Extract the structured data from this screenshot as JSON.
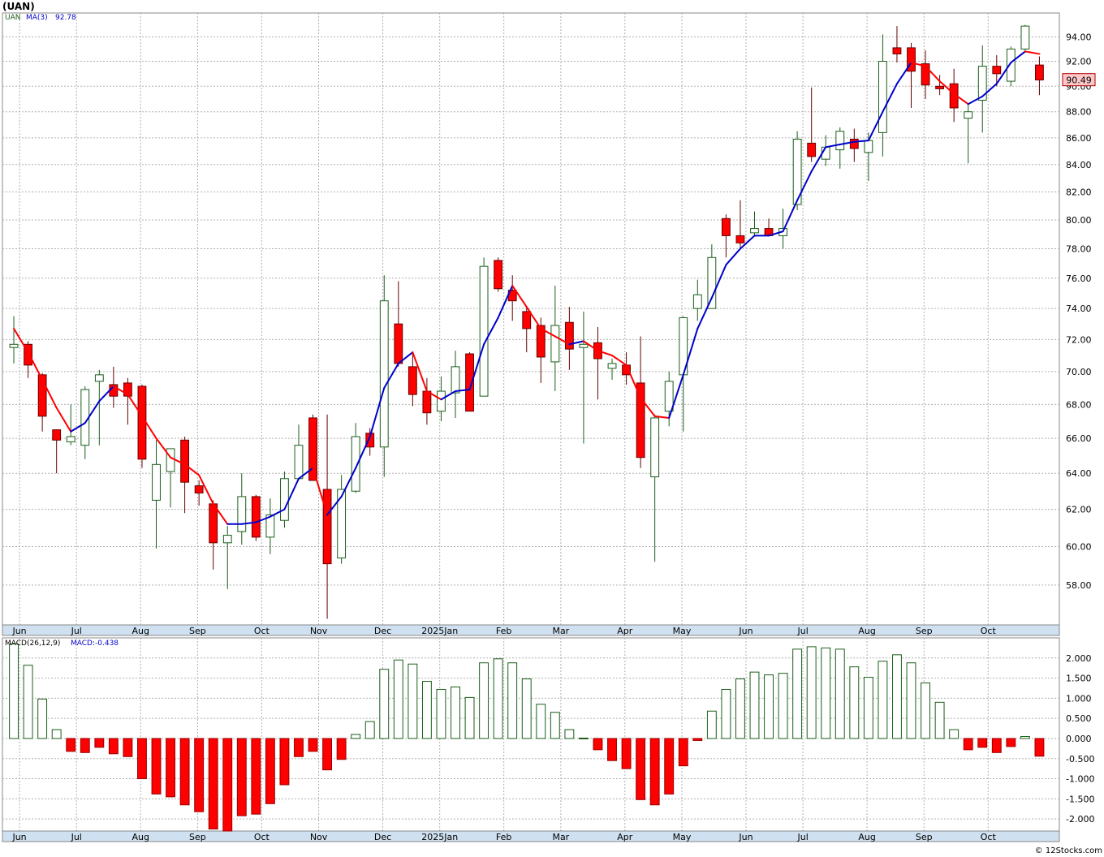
{
  "title": "(UAN)",
  "credit": "© 12Stocks.com",
  "colors": {
    "up": "#1a5e1a",
    "down": "#ff0000",
    "ma_up": "#0000cc",
    "ma_down": "#ff0000",
    "grid": "#b0b0b0",
    "axis_band": "#cfe0f0",
    "last_price_bg": "#ffc8c8"
  },
  "months": [
    "Jun",
    "Jul",
    "Aug",
    "Sep",
    "Oct",
    "Nov",
    "Dec",
    "2025Jan",
    "Feb",
    "Mar",
    "Apr",
    "May",
    "Jun",
    "Jul",
    "Aug",
    "Sep",
    "Oct"
  ],
  "chart_data": [
    {
      "type": "candlestick",
      "legend": {
        "symbol": "UAN",
        "ma_label": "MA(3)",
        "ma_value": "92.78"
      },
      "last_price": "90.49",
      "ylim": [
        56,
        96
      ],
      "y_scale": "log",
      "y_ticks": [
        "58.00",
        "60.00",
        "62.00",
        "64.00",
        "66.00",
        "68.00",
        "70.00",
        "72.00",
        "74.00",
        "76.00",
        "78.00",
        "80.00",
        "82.00",
        "84.00",
        "86.00",
        "88.00",
        "90.00",
        "92.00",
        "94.00"
      ],
      "candles": [
        {
          "o": 71.5,
          "h": 73.5,
          "l": 70.5,
          "c": 71.7
        },
        {
          "o": 71.7,
          "h": 71.9,
          "l": 69.6,
          "c": 70.4
        },
        {
          "o": 69.8,
          "h": 69.9,
          "l": 66.4,
          "c": 67.3
        },
        {
          "o": 66.5,
          "h": 66.5,
          "l": 64.0,
          "c": 65.9
        },
        {
          "o": 65.8,
          "h": 68.0,
          "l": 65.6,
          "c": 66.1
        },
        {
          "o": 65.6,
          "h": 69.1,
          "l": 64.8,
          "c": 68.9
        },
        {
          "o": 69.4,
          "h": 70.1,
          "l": 65.6,
          "c": 69.8
        },
        {
          "o": 69.2,
          "h": 70.3,
          "l": 67.8,
          "c": 68.5
        },
        {
          "o": 69.3,
          "h": 69.6,
          "l": 66.8,
          "c": 68.5
        },
        {
          "o": 69.1,
          "h": 69.2,
          "l": 64.3,
          "c": 64.8
        },
        {
          "o": 62.5,
          "h": 65.9,
          "l": 59.9,
          "c": 64.5
        },
        {
          "o": 64.1,
          "h": 65.4,
          "l": 62.1,
          "c": 65.4
        },
        {
          "o": 65.9,
          "h": 66.1,
          "l": 61.8,
          "c": 63.5
        },
        {
          "o": 63.3,
          "h": 63.6,
          "l": 62.2,
          "c": 62.9
        },
        {
          "o": 62.3,
          "h": 62.5,
          "l": 58.8,
          "c": 60.2
        },
        {
          "o": 60.2,
          "h": 61.1,
          "l": 57.8,
          "c": 60.6
        },
        {
          "o": 60.8,
          "h": 64.0,
          "l": 60.1,
          "c": 62.7
        },
        {
          "o": 62.7,
          "h": 62.8,
          "l": 60.3,
          "c": 60.5
        },
        {
          "o": 60.5,
          "h": 62.6,
          "l": 59.6,
          "c": 61.7
        },
        {
          "o": 61.4,
          "h": 64.1,
          "l": 61.0,
          "c": 63.7
        },
        {
          "o": 63.7,
          "h": 66.8,
          "l": 63.6,
          "c": 65.6
        },
        {
          "o": 67.2,
          "h": 67.4,
          "l": 63.7,
          "c": 63.6
        },
        {
          "o": 63.1,
          "h": 67.4,
          "l": 56.3,
          "c": 59.1
        },
        {
          "o": 59.4,
          "h": 63.9,
          "l": 59.1,
          "c": 63.1
        },
        {
          "o": 63.0,
          "h": 66.9,
          "l": 62.9,
          "c": 66.1
        },
        {
          "o": 66.3,
          "h": 66.6,
          "l": 65.0,
          "c": 65.5
        },
        {
          "o": 65.5,
          "h": 76.2,
          "l": 63.8,
          "c": 74.5
        },
        {
          "o": 73.0,
          "h": 75.8,
          "l": 70.3,
          "c": 70.5
        },
        {
          "o": 70.3,
          "h": 71.2,
          "l": 67.9,
          "c": 68.6
        },
        {
          "o": 68.8,
          "h": 69.6,
          "l": 66.8,
          "c": 67.5
        },
        {
          "o": 67.6,
          "h": 69.7,
          "l": 67.0,
          "c": 68.8
        },
        {
          "o": 68.7,
          "h": 71.3,
          "l": 67.2,
          "c": 70.3
        },
        {
          "o": 71.1,
          "h": 71.2,
          "l": 67.8,
          "c": 67.6
        },
        {
          "o": 68.5,
          "h": 77.4,
          "l": 68.5,
          "c": 76.8
        },
        {
          "o": 77.2,
          "h": 77.4,
          "l": 75.1,
          "c": 75.3
        },
        {
          "o": 75.2,
          "h": 76.2,
          "l": 73.2,
          "c": 74.5
        },
        {
          "o": 73.8,
          "h": 74.1,
          "l": 71.2,
          "c": 72.7
        },
        {
          "o": 72.9,
          "h": 73.4,
          "l": 69.3,
          "c": 70.9
        },
        {
          "o": 70.6,
          "h": 75.5,
          "l": 68.8,
          "c": 72.9
        },
        {
          "o": 73.1,
          "h": 74.1,
          "l": 70.1,
          "c": 71.4
        },
        {
          "o": 71.5,
          "h": 73.8,
          "l": 65.7,
          "c": 71.7
        },
        {
          "o": 71.8,
          "h": 72.8,
          "l": 68.3,
          "c": 70.8
        },
        {
          "o": 70.2,
          "h": 70.8,
          "l": 69.5,
          "c": 70.5
        },
        {
          "o": 70.4,
          "h": 71.2,
          "l": 69.2,
          "c": 69.8
        },
        {
          "o": 69.3,
          "h": 72.2,
          "l": 64.3,
          "c": 64.9
        },
        {
          "o": 63.8,
          "h": 67.4,
          "l": 59.2,
          "c": 67.2
        },
        {
          "o": 67.6,
          "h": 70.0,
          "l": 66.7,
          "c": 69.4
        },
        {
          "o": 69.8,
          "h": 73.5,
          "l": 66.4,
          "c": 73.4
        },
        {
          "o": 74.0,
          "h": 75.9,
          "l": 73.2,
          "c": 74.9
        },
        {
          "o": 74.0,
          "h": 78.3,
          "l": 74.0,
          "c": 77.4
        },
        {
          "o": 80.1,
          "h": 80.4,
          "l": 77.4,
          "c": 78.9
        },
        {
          "o": 78.9,
          "h": 81.4,
          "l": 78.0,
          "c": 78.4
        },
        {
          "o": 79.1,
          "h": 80.6,
          "l": 78.9,
          "c": 79.4
        },
        {
          "o": 79.4,
          "h": 80.1,
          "l": 78.9,
          "c": 78.9
        },
        {
          "o": 78.9,
          "h": 80.8,
          "l": 78.0,
          "c": 79.4
        },
        {
          "o": 81.1,
          "h": 86.5,
          "l": 80.7,
          "c": 85.9
        },
        {
          "o": 85.6,
          "h": 89.9,
          "l": 84.2,
          "c": 84.6
        },
        {
          "o": 84.4,
          "h": 86.2,
          "l": 83.9,
          "c": 85.3
        },
        {
          "o": 85.1,
          "h": 86.8,
          "l": 83.7,
          "c": 86.5
        },
        {
          "o": 85.9,
          "h": 86.7,
          "l": 84.2,
          "c": 85.2
        },
        {
          "o": 84.9,
          "h": 86.4,
          "l": 82.8,
          "c": 85.8
        },
        {
          "o": 86.4,
          "h": 94.2,
          "l": 84.6,
          "c": 92.0
        },
        {
          "o": 93.1,
          "h": 94.9,
          "l": 91.9,
          "c": 92.6
        },
        {
          "o": 93.1,
          "h": 93.5,
          "l": 88.3,
          "c": 91.2
        },
        {
          "o": 91.8,
          "h": 92.9,
          "l": 89.0,
          "c": 90.1
        },
        {
          "o": 90.0,
          "h": 90.9,
          "l": 89.3,
          "c": 89.8
        },
        {
          "o": 90.2,
          "h": 91.4,
          "l": 87.2,
          "c": 88.3
        },
        {
          "o": 87.5,
          "h": 88.6,
          "l": 84.1,
          "c": 88.0
        },
        {
          "o": 88.9,
          "h": 93.3,
          "l": 86.4,
          "c": 91.6
        },
        {
          "o": 91.6,
          "h": 92.5,
          "l": 90.0,
          "c": 91.0
        },
        {
          "o": 90.4,
          "h": 93.2,
          "l": 90.0,
          "c": 93.0
        },
        {
          "o": 93.0,
          "h": 95.0,
          "l": 92.7,
          "c": 94.9
        },
        {
          "o": 91.7,
          "h": 92.4,
          "l": 89.3,
          "c": 90.5
        }
      ],
      "ma": [
        72.7,
        71.2,
        69.5,
        67.8,
        66.4,
        66.9,
        68.2,
        69.1,
        68.6,
        67.3,
        66.0,
        64.9,
        64.5,
        63.9,
        62.3,
        61.2,
        61.2,
        61.3,
        61.6,
        62.0,
        63.7,
        64.3,
        61.7,
        62.7,
        64.3,
        66.1,
        69.0,
        70.5,
        71.2,
        68.8,
        68.3,
        68.8,
        68.9,
        71.7,
        73.4,
        75.5,
        74.1,
        72.7,
        72.2,
        71.7,
        71.9,
        71.3,
        71.0,
        70.4,
        68.4,
        67.3,
        67.2,
        69.8,
        72.7,
        74.7,
        76.9,
        78.0,
        78.9,
        78.9,
        79.2,
        81.4,
        83.5,
        85.3,
        85.5,
        85.7,
        85.8,
        88.0,
        90.2,
        91.9,
        91.6,
        90.4,
        89.4,
        88.6,
        89.2,
        90.2,
        91.9,
        92.8,
        92.6
      ]
    },
    {
      "type": "bar",
      "title": "MACD(26,12,9)",
      "value_label": "MACD:-0.438",
      "ylim": [
        -2.3,
        2.5
      ],
      "y_ticks": [
        "-2.000",
        "-1.500",
        "-1.000",
        "-0.500",
        "0.000",
        "0.500",
        "1.000",
        "1.500",
        "2.000"
      ],
      "values": [
        2.35,
        1.82,
        0.98,
        0.22,
        -0.32,
        -0.35,
        -0.22,
        -0.38,
        -0.45,
        -1.0,
        -1.38,
        -1.45,
        -1.65,
        -1.82,
        -2.25,
        -2.3,
        -1.92,
        -1.88,
        -1.62,
        -1.15,
        -0.45,
        -0.32,
        -0.78,
        -0.52,
        0.1,
        0.42,
        1.72,
        1.95,
        1.85,
        1.42,
        1.22,
        1.28,
        1.02,
        1.88,
        1.98,
        1.88,
        1.48,
        0.85,
        0.65,
        0.22,
        0.01,
        -0.28,
        -0.55,
        -0.75,
        -1.52,
        -1.65,
        -1.38,
        -0.68,
        -0.05,
        0.68,
        1.22,
        1.48,
        1.65,
        1.58,
        1.62,
        2.22,
        2.28,
        2.25,
        2.22,
        1.78,
        1.52,
        1.92,
        2.08,
        1.88,
        1.38,
        0.9,
        0.22,
        -0.28,
        -0.22,
        -0.35,
        -0.2,
        0.05,
        -0.44
      ]
    }
  ]
}
